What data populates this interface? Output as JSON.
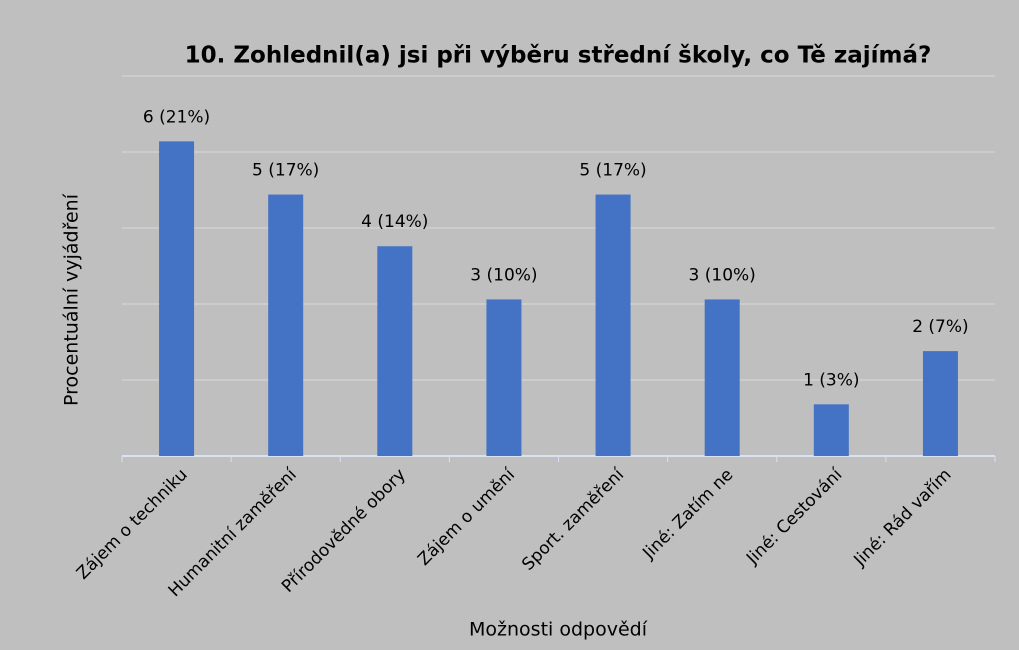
{
  "chart_data": {
    "type": "bar",
    "title": "10. Zohlednil(a) jsi při výběru střední školy, co Tě zajímá?",
    "x_label": "Možnosti odpovědí",
    "y_label": "Procentuální vyjádření",
    "categories": [
      "Zájem o techniku",
      "Humanitní zaměření",
      "Přírodovědné obory",
      "Zájem o umění",
      "Sport. zaměření",
      "Jiné: Zatím ne",
      "Jiné: Cestování",
      "Jiné: Rád vařím"
    ],
    "values": [
      20.7,
      17.2,
      13.8,
      10.3,
      17.2,
      10.3,
      3.4,
      6.9
    ],
    "value_labels": [
      "6 (21%)",
      "5 (17%)",
      "4 (14%)",
      "3 (10%)",
      "5 (17%)",
      "3 (10%)",
      "1 (3%)",
      "2 (7%)"
    ],
    "color": "#4472c4",
    "ylim": [
      0,
      25
    ],
    "yticks": [
      0,
      5,
      10,
      15,
      20,
      25
    ],
    "grid": true
  }
}
